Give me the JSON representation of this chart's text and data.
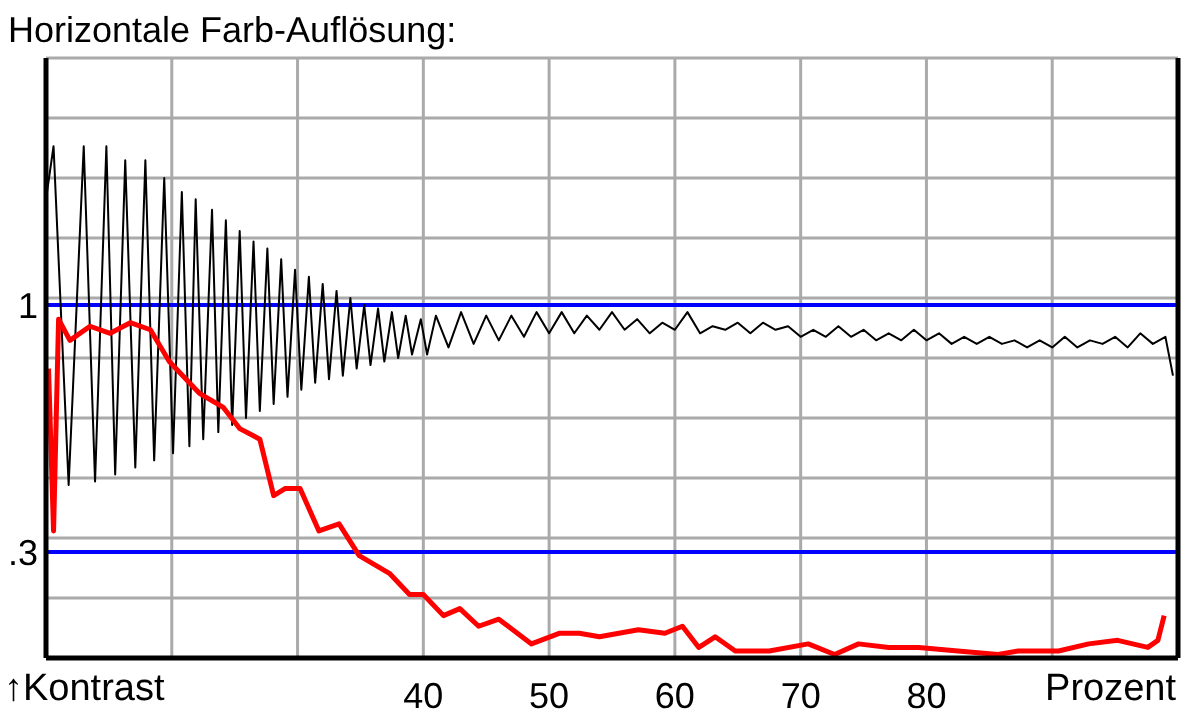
{
  "chart_data": {
    "type": "line",
    "title": "Horizontale Farb-Auflösung:",
    "xlabel": "Prozent",
    "ylabel": "↑Kontrast",
    "xlim": [
      10,
      100
    ],
    "ylim": [
      0,
      1.7
    ],
    "xticks": [
      {
        "value": 20,
        "label": null
      },
      {
        "value": 30,
        "label": null
      },
      40,
      50,
      60,
      70,
      80,
      {
        "value": 90,
        "label": null
      }
    ],
    "yticks": [
      {
        "value": 0,
        "label": null
      },
      {
        "value": 0.17,
        "label": null
      },
      {
        "value": 0.34,
        "label": null
      },
      {
        "value": 0.51,
        "label": null
      },
      {
        "value": 0.68,
        "label": null
      },
      {
        "value": 0.85,
        "label": null
      },
      {
        "value": 1.02,
        "label": null
      },
      {
        "value": 1.19,
        "label": null
      },
      {
        "value": 1.36,
        "label": null
      },
      {
        "value": 1.53,
        "label": null
      },
      {
        "value": 1.7,
        "label": null
      }
    ],
    "grid": true,
    "legend": false,
    "marker": "none",
    "line_style": "solid",
    "ref_lines": [
      {
        "axis": "y",
        "value": 1,
        "label": "1",
        "color": "#0000ff"
      },
      {
        "axis": "y",
        "value": 0.3,
        "label": ".3",
        "color": "#0000ff"
      }
    ],
    "series": [
      {
        "color": "#000000",
        "x": [
          10.0,
          10.6,
          11.8,
          13.0,
          13.9,
          14.8,
          15.5,
          16.3,
          17.1,
          17.9,
          18.6,
          19.4,
          20.1,
          20.8,
          21.4,
          21.9,
          22.5,
          23.2,
          23.7,
          24.3,
          24.8,
          25.4,
          25.9,
          26.5,
          27.0,
          27.6,
          28.1,
          28.7,
          29.2,
          29.8,
          30.3,
          30.9,
          31.4,
          32.0,
          32.5,
          33.1,
          33.6,
          34.2,
          34.7,
          35.3,
          35.8,
          36.4,
          36.9,
          37.5,
          38.0,
          38.6,
          39.1,
          39.8,
          40.3,
          41,
          42,
          43,
          44,
          45,
          46,
          47,
          48,
          49,
          50,
          51,
          52,
          53,
          54,
          55,
          56,
          57,
          58,
          59,
          60,
          61,
          62,
          63,
          64,
          65,
          66,
          67,
          68,
          69,
          70,
          71,
          72,
          73,
          74,
          75,
          76,
          77,
          78,
          79,
          80,
          81,
          82,
          83,
          84,
          85,
          86,
          87,
          88,
          89,
          90,
          91,
          92,
          93,
          94,
          95,
          96,
          97,
          98,
          99,
          99.6
        ],
        "values": [
          1.3,
          1.45,
          0.49,
          1.45,
          0.5,
          1.45,
          0.52,
          1.41,
          0.54,
          1.41,
          0.56,
          1.36,
          0.58,
          1.32,
          0.6,
          1.3,
          0.62,
          1.27,
          0.64,
          1.24,
          0.66,
          1.21,
          0.68,
          1.18,
          0.7,
          1.16,
          0.72,
          1.13,
          0.74,
          1.1,
          0.76,
          1.08,
          0.78,
          1.06,
          0.79,
          1.04,
          0.8,
          1.02,
          0.82,
          1.0,
          0.83,
          0.99,
          0.84,
          0.98,
          0.85,
          0.97,
          0.86,
          0.96,
          0.86,
          0.97,
          0.88,
          0.98,
          0.89,
          0.97,
          0.9,
          0.97,
          0.91,
          0.98,
          0.92,
          0.98,
          0.92,
          0.97,
          0.93,
          0.98,
          0.93,
          0.96,
          0.92,
          0.95,
          0.93,
          0.98,
          0.92,
          0.94,
          0.93,
          0.95,
          0.92,
          0.95,
          0.93,
          0.94,
          0.91,
          0.93,
          0.91,
          0.94,
          0.91,
          0.93,
          0.9,
          0.92,
          0.9,
          0.93,
          0.9,
          0.92,
          0.89,
          0.91,
          0.89,
          0.91,
          0.89,
          0.9,
          0.88,
          0.9,
          0.88,
          0.91,
          0.88,
          0.9,
          0.89,
          0.91,
          0.88,
          0.92,
          0.89,
          0.91,
          0.8
        ]
      },
      {
        "color": "#ff0000",
        "x": [
          10.2,
          10.6,
          11.0,
          11.9,
          13.5,
          15.1,
          16.7,
          18.3,
          19.8,
          21.4,
          22.2,
          24.1,
          25.4,
          27.0,
          28.1,
          29.0,
          30.2,
          31.7,
          33.3,
          34.9,
          37.3,
          38.9,
          40.0,
          41.6,
          42.9,
          44.4,
          46.0,
          48.6,
          50.8,
          52.4,
          54.0,
          57.1,
          59.2,
          60.6,
          61.9,
          63.2,
          64.8,
          67.5,
          70.6,
          72.7,
          74.6,
          77.0,
          79.4,
          82.5,
          85.7,
          87.3,
          90.5,
          92.9,
          95.2,
          97.6,
          98.4,
          98.9
        ],
        "values": [
          0.82,
          0.36,
          0.96,
          0.9,
          0.94,
          0.92,
          0.95,
          0.93,
          0.84,
          0.78,
          0.75,
          0.71,
          0.65,
          0.62,
          0.46,
          0.48,
          0.48,
          0.36,
          0.38,
          0.29,
          0.24,
          0.18,
          0.18,
          0.12,
          0.14,
          0.09,
          0.11,
          0.04,
          0.07,
          0.07,
          0.06,
          0.08,
          0.07,
          0.09,
          0.03,
          0.06,
          0.02,
          0.02,
          0.04,
          0.01,
          0.04,
          0.03,
          0.03,
          0.02,
          0.01,
          0.02,
          0.02,
          0.04,
          0.05,
          0.03,
          0.05,
          0.12
        ]
      }
    ]
  }
}
